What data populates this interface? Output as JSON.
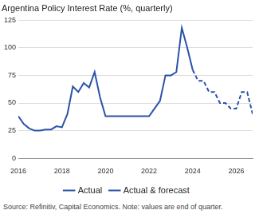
{
  "chart_data": {
    "type": "line",
    "title": "Argentina Policy Interest Rate (%, quarterly)",
    "source": "Source: Refinitiv, Capital Economics. Note: values are end of quarter.",
    "x": [
      2016,
      2016.25,
      2016.5,
      2016.75,
      2017,
      2017.25,
      2017.5,
      2017.75,
      2018,
      2018.25,
      2018.5,
      2018.75,
      2019,
      2019.25,
      2019.5,
      2019.75,
      2020,
      2020.25,
      2020.5,
      2020.75,
      2021,
      2021.25,
      2021.5,
      2021.75,
      2022,
      2022.25,
      2022.5,
      2022.75,
      2023,
      2023.25,
      2023.5,
      2023.75,
      2024,
      2024.25,
      2024.5,
      2024.75,
      2025,
      2025.25,
      2025.5,
      2025.75,
      2026,
      2026.25,
      2026.5,
      2026.75
    ],
    "series": [
      {
        "name": "Actual",
        "color": "#2a52a8",
        "line_style": "solid",
        "values": [
          38,
          31,
          27,
          25,
          25,
          26,
          26,
          29,
          28,
          40,
          65,
          60,
          68,
          64,
          78,
          55,
          38,
          38,
          38,
          38,
          38,
          38,
          38,
          38,
          38,
          45,
          52,
          75,
          75,
          78,
          118,
          100,
          80,
          null,
          null,
          null,
          null,
          null,
          null,
          null,
          null,
          null,
          null,
          null
        ]
      },
      {
        "name": "Actual & forecast",
        "color": "#2a52a8",
        "line_style": "dashed",
        "values": [
          null,
          null,
          null,
          null,
          null,
          null,
          null,
          null,
          null,
          null,
          null,
          null,
          null,
          null,
          null,
          null,
          null,
          null,
          null,
          null,
          null,
          null,
          null,
          null,
          null,
          null,
          null,
          null,
          null,
          null,
          null,
          null,
          80,
          70,
          70,
          60,
          60,
          50,
          50,
          45,
          45,
          60,
          60,
          40
        ]
      }
    ],
    "xlim": [
      2016,
      2026.75
    ],
    "xticks": [
      2016,
      2018,
      2020,
      2022,
      2024,
      2026
    ],
    "ylim": [
      0,
      125
    ],
    "yticks": [
      0,
      25,
      50,
      75,
      100,
      125
    ],
    "grid": "y",
    "legend": "bottom"
  }
}
